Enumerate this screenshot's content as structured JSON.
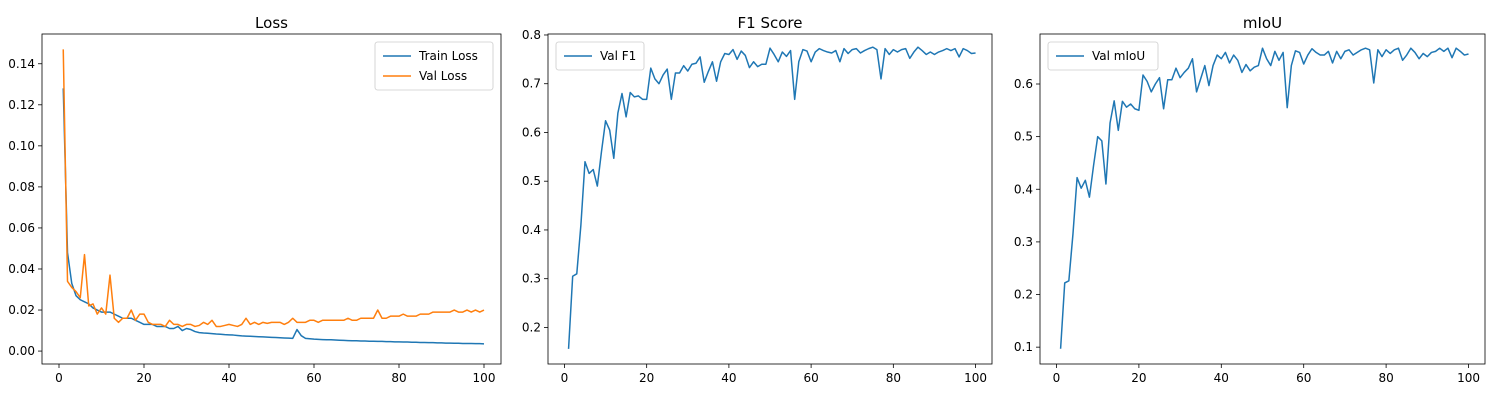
{
  "chart_data": [
    {
      "type": "line",
      "title": "Loss",
      "xlim": [
        -4,
        104
      ],
      "ylim": [
        -0.0063,
        0.1545
      ],
      "xticks": [
        0,
        20,
        40,
        60,
        80,
        100
      ],
      "yticks": [
        0.0,
        0.02,
        0.04,
        0.06,
        0.08,
        0.1,
        0.12,
        0.14
      ],
      "ytick_labels": [
        "0.00",
        "0.02",
        "0.04",
        "0.06",
        "0.08",
        "0.10",
        "0.12",
        "0.14"
      ],
      "grid": false,
      "legend": "top-right",
      "series": [
        {
          "name": "Train Loss",
          "color": "#1f77b4",
          "values": [
            0.128,
            0.048,
            0.033,
            0.027,
            0.025,
            0.024,
            0.023,
            0.021,
            0.02,
            0.019,
            0.019,
            0.019,
            0.018,
            0.017,
            0.016,
            0.016,
            0.016,
            0.015,
            0.014,
            0.013,
            0.013,
            0.013,
            0.012,
            0.012,
            0.012,
            0.011,
            0.011,
            0.012,
            0.01,
            0.011,
            0.0105,
            0.0095,
            0.009,
            0.0088,
            0.0087,
            0.0085,
            0.0083,
            0.0082,
            0.008,
            0.0079,
            0.0078,
            0.0076,
            0.0074,
            0.0073,
            0.0072,
            0.0071,
            0.007,
            0.0069,
            0.0068,
            0.0067,
            0.0066,
            0.0065,
            0.0064,
            0.0063,
            0.0062,
            0.0105,
            0.0075,
            0.0062,
            0.006,
            0.0058,
            0.0057,
            0.0056,
            0.0055,
            0.0055,
            0.0054,
            0.0053,
            0.0052,
            0.0051,
            0.005,
            0.005,
            0.0049,
            0.0049,
            0.0048,
            0.0048,
            0.0047,
            0.0047,
            0.0046,
            0.0046,
            0.0045,
            0.0045,
            0.0044,
            0.0044,
            0.0043,
            0.0043,
            0.0042,
            0.0042,
            0.0041,
            0.0041,
            0.004,
            0.004,
            0.0039,
            0.0039,
            0.0038,
            0.0038,
            0.0037,
            0.0037,
            0.0037,
            0.0036,
            0.0036,
            0.0035
          ]
        },
        {
          "name": "Val Loss",
          "color": "#ff7f0e",
          "values": [
            0.147,
            0.034,
            0.031,
            0.029,
            0.026,
            0.047,
            0.022,
            0.023,
            0.018,
            0.021,
            0.018,
            0.037,
            0.016,
            0.014,
            0.016,
            0.016,
            0.02,
            0.015,
            0.018,
            0.018,
            0.014,
            0.013,
            0.013,
            0.013,
            0.012,
            0.015,
            0.013,
            0.013,
            0.012,
            0.013,
            0.013,
            0.012,
            0.0125,
            0.014,
            0.013,
            0.015,
            0.012,
            0.012,
            0.0125,
            0.013,
            0.0125,
            0.012,
            0.013,
            0.016,
            0.013,
            0.014,
            0.013,
            0.014,
            0.0135,
            0.014,
            0.014,
            0.014,
            0.013,
            0.014,
            0.016,
            0.014,
            0.014,
            0.014,
            0.015,
            0.015,
            0.014,
            0.015,
            0.015,
            0.015,
            0.015,
            0.015,
            0.015,
            0.016,
            0.015,
            0.015,
            0.016,
            0.016,
            0.016,
            0.016,
            0.02,
            0.016,
            0.016,
            0.017,
            0.017,
            0.017,
            0.018,
            0.017,
            0.017,
            0.017,
            0.018,
            0.018,
            0.018,
            0.019,
            0.019,
            0.019,
            0.019,
            0.019,
            0.02,
            0.019,
            0.019,
            0.02,
            0.019,
            0.02,
            0.019,
            0.02
          ]
        }
      ]
    },
    {
      "type": "line",
      "title": "F1 Score",
      "xlim": [
        -4,
        104
      ],
      "ylim": [
        0.125,
        0.802
      ],
      "xticks": [
        0,
        20,
        40,
        60,
        80,
        100
      ],
      "yticks": [
        0.2,
        0.3,
        0.4,
        0.5,
        0.6,
        0.7,
        0.8
      ],
      "ytick_labels": [
        "0.2",
        "0.3",
        "0.4",
        "0.5",
        "0.6",
        "0.7",
        "0.8"
      ],
      "grid": false,
      "legend": "top-left",
      "series": [
        {
          "name": "Val F1",
          "color": "#1f77b4",
          "values": [
            0.156,
            0.305,
            0.31,
            0.41,
            0.54,
            0.516,
            0.524,
            0.49,
            0.56,
            0.624,
            0.605,
            0.547,
            0.64,
            0.68,
            0.632,
            0.682,
            0.673,
            0.675,
            0.668,
            0.668,
            0.732,
            0.71,
            0.7,
            0.718,
            0.73,
            0.668,
            0.722,
            0.722,
            0.737,
            0.726,
            0.74,
            0.742,
            0.755,
            0.703,
            0.725,
            0.745,
            0.705,
            0.745,
            0.762,
            0.76,
            0.77,
            0.75,
            0.767,
            0.758,
            0.733,
            0.745,
            0.735,
            0.74,
            0.74,
            0.773,
            0.76,
            0.745,
            0.765,
            0.756,
            0.768,
            0.668,
            0.745,
            0.77,
            0.767,
            0.745,
            0.765,
            0.772,
            0.768,
            0.765,
            0.763,
            0.768,
            0.745,
            0.772,
            0.762,
            0.77,
            0.772,
            0.763,
            0.768,
            0.772,
            0.775,
            0.77,
            0.71,
            0.772,
            0.76,
            0.77,
            0.765,
            0.77,
            0.772,
            0.752,
            0.765,
            0.775,
            0.768,
            0.76,
            0.765,
            0.76,
            0.765,
            0.768,
            0.772,
            0.768,
            0.772,
            0.755,
            0.772,
            0.768,
            0.762,
            0.763
          ]
        }
      ]
    },
    {
      "type": "line",
      "title": "mIoU",
      "xlim": [
        -4,
        104
      ],
      "ylim": [
        0.068,
        0.695
      ],
      "xticks": [
        0,
        20,
        40,
        60,
        80,
        100
      ],
      "yticks": [
        0.1,
        0.2,
        0.3,
        0.4,
        0.5,
        0.6
      ],
      "ytick_labels": [
        "0.1",
        "0.2",
        "0.3",
        "0.4",
        "0.5",
        "0.6"
      ],
      "grid": false,
      "legend": "top-left",
      "series": [
        {
          "name": "Val mIoU",
          "color": "#1f77b4",
          "values": [
            0.097,
            0.222,
            0.226,
            0.315,
            0.422,
            0.402,
            0.417,
            0.385,
            0.445,
            0.5,
            0.492,
            0.41,
            0.526,
            0.568,
            0.512,
            0.567,
            0.556,
            0.562,
            0.553,
            0.55,
            0.617,
            0.605,
            0.585,
            0.6,
            0.612,
            0.553,
            0.608,
            0.608,
            0.63,
            0.612,
            0.622,
            0.63,
            0.648,
            0.585,
            0.61,
            0.635,
            0.597,
            0.635,
            0.655,
            0.648,
            0.66,
            0.64,
            0.655,
            0.645,
            0.622,
            0.637,
            0.625,
            0.632,
            0.635,
            0.668,
            0.648,
            0.635,
            0.662,
            0.645,
            0.66,
            0.555,
            0.635,
            0.663,
            0.66,
            0.638,
            0.655,
            0.667,
            0.66,
            0.655,
            0.655,
            0.662,
            0.64,
            0.662,
            0.648,
            0.662,
            0.665,
            0.655,
            0.66,
            0.665,
            0.668,
            0.665,
            0.602,
            0.665,
            0.652,
            0.665,
            0.658,
            0.665,
            0.668,
            0.645,
            0.655,
            0.668,
            0.66,
            0.648,
            0.658,
            0.652,
            0.66,
            0.662,
            0.668,
            0.662,
            0.668,
            0.65,
            0.668,
            0.662,
            0.655,
            0.657
          ]
        }
      ]
    }
  ]
}
